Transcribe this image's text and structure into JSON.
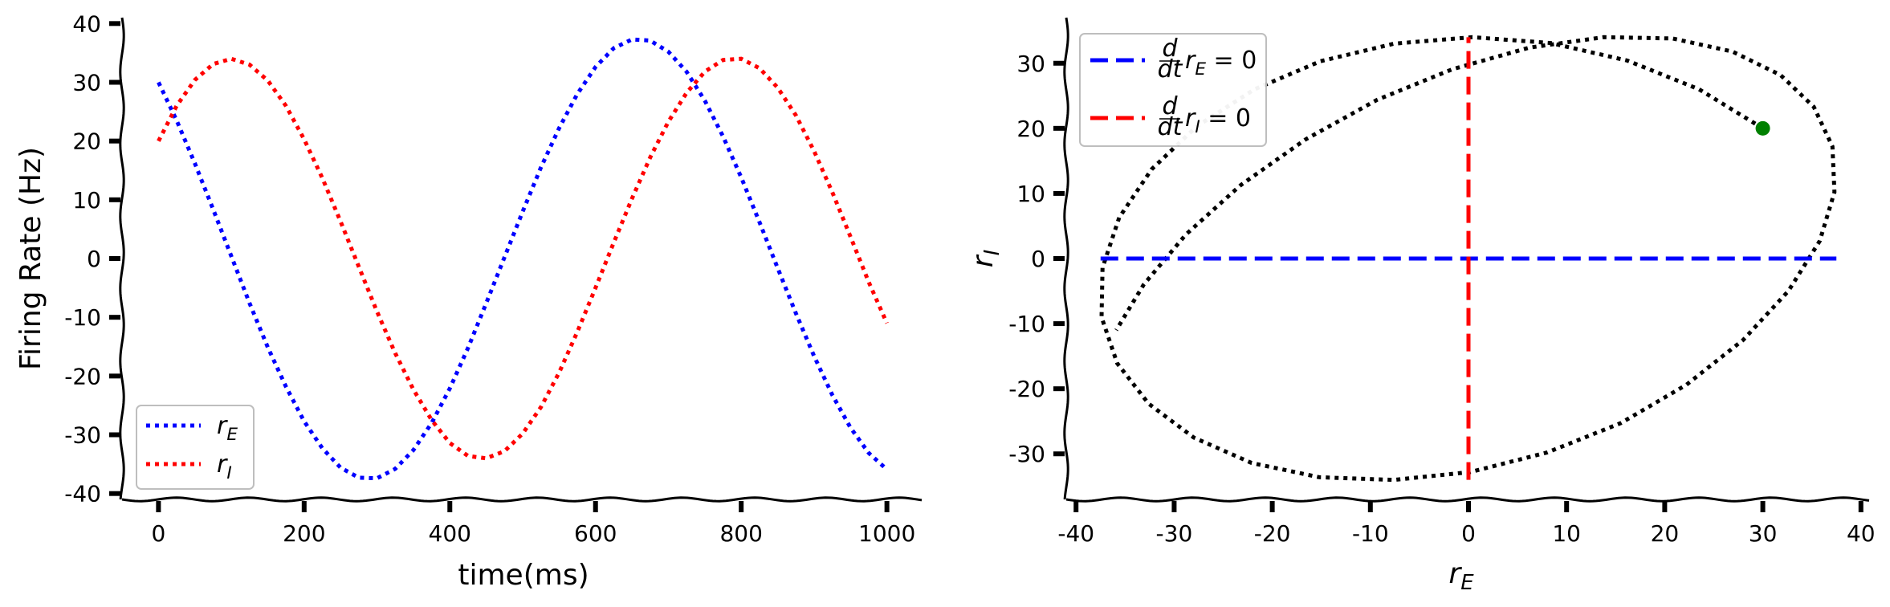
{
  "chart_data": [
    {
      "type": "line",
      "xlabel": "time(ms)",
      "ylabel": "Firing Rate (Hz)",
      "xlim": [
        -50,
        1050
      ],
      "ylim": [
        -41,
        41
      ],
      "xticks": [
        0,
        200,
        400,
        600,
        800,
        1000
      ],
      "yticks": [
        -40,
        -30,
        -20,
        -10,
        0,
        10,
        20,
        30,
        40
      ],
      "legend_position": "lower-left",
      "x": [
        0,
        25,
        50,
        75,
        100,
        125,
        150,
        175,
        200,
        225,
        250,
        275,
        300,
        325,
        350,
        375,
        400,
        425,
        450,
        475,
        500,
        525,
        550,
        575,
        600,
        625,
        650,
        675,
        700,
        725,
        750,
        775,
        800,
        825,
        850,
        875,
        900,
        925,
        950,
        975,
        1000
      ],
      "series": [
        {
          "name": "r_E",
          "label_base": "r",
          "label_sub": "E",
          "color": "#0000ff",
          "style": "dotted",
          "values": [
            30.0,
            23.5,
            16.2,
            8.4,
            0.4,
            -7.6,
            -15.1,
            -21.8,
            -27.7,
            -32.3,
            -35.6,
            -37.3,
            -37.4,
            -35.8,
            -32.6,
            -28.0,
            -22.1,
            -15.2,
            -7.6,
            0.2,
            8.0,
            15.5,
            22.2,
            28.0,
            32.6,
            35.8,
            37.3,
            37.1,
            35.2,
            31.8,
            26.9,
            20.8,
            13.8,
            6.2,
            -1.6,
            -9.3,
            -16.6,
            -23.2,
            -28.8,
            -33.1,
            -35.9
          ]
        },
        {
          "name": "r_I",
          "label_base": "r",
          "label_sub": "I",
          "color": "#ff0000",
          "style": "dotted",
          "values": [
            20.0,
            26.0,
            30.4,
            33.1,
            34.0,
            33.0,
            30.3,
            26.0,
            20.3,
            13.7,
            6.3,
            -1.4,
            -9.0,
            -16.1,
            -22.3,
            -27.5,
            -31.4,
            -33.6,
            -34.0,
            -32.8,
            -29.8,
            -25.3,
            -19.4,
            -12.5,
            -5.0,
            2.7,
            10.2,
            17.2,
            23.3,
            28.2,
            31.8,
            33.8,
            34.0,
            32.4,
            29.1,
            24.4,
            18.3,
            11.3,
            3.7,
            -4.0,
            -11.0
          ]
        }
      ]
    },
    {
      "type": "line",
      "xlabel_base": "r",
      "xlabel_sub": "E",
      "ylabel_base": "r",
      "ylabel_sub": "I",
      "xlim": [
        -41,
        41
      ],
      "ylim": [
        -37,
        37
      ],
      "xticks": [
        -40,
        -30,
        -20,
        -10,
        0,
        10,
        20,
        30,
        40
      ],
      "yticks": [
        -30,
        -20,
        -10,
        0,
        10,
        20,
        30
      ],
      "legend_position": "upper-left",
      "trajectory": {
        "color": "#000000",
        "style": "dotted",
        "x": [
          30.0,
          23.5,
          16.2,
          8.4,
          0.4,
          -7.6,
          -15.1,
          -21.8,
          -27.7,
          -32.3,
          -35.6,
          -37.3,
          -37.4,
          -35.8,
          -32.6,
          -28.0,
          -22.1,
          -15.2,
          -7.6,
          0.2,
          8.0,
          15.5,
          22.2,
          28.0,
          32.6,
          35.8,
          37.3,
          37.1,
          35.2,
          31.8,
          26.9,
          20.8,
          13.8,
          6.2,
          -1.6,
          -9.3,
          -16.6,
          -23.2,
          -28.8,
          -33.1,
          -35.9
        ],
        "y": [
          20.0,
          26.0,
          30.4,
          33.1,
          34.0,
          33.0,
          30.3,
          26.0,
          20.3,
          13.7,
          6.3,
          -1.4,
          -9.0,
          -16.1,
          -22.3,
          -27.5,
          -31.4,
          -33.6,
          -34.0,
          -32.8,
          -29.8,
          -25.3,
          -19.4,
          -12.5,
          -5.0,
          2.7,
          10.2,
          17.2,
          23.3,
          28.2,
          31.8,
          33.8,
          34.0,
          32.4,
          29.1,
          24.4,
          18.3,
          11.3,
          3.7,
          -4.0,
          -11.0
        ]
      },
      "start_point": {
        "x": 30,
        "y": 20,
        "color": "#008000"
      },
      "nullclines": [
        {
          "name": "d/dt r_E = 0",
          "label_frac_num": "d",
          "label_frac_den": "dt",
          "label_base": "r",
          "label_sub": "E",
          "label_rhs": " = 0",
          "color": "#0000ff",
          "style": "dashed",
          "x": [
            -37.5,
            37.5
          ],
          "y": [
            0,
            0
          ]
        },
        {
          "name": "d/dt r_I = 0",
          "label_frac_num": "d",
          "label_frac_den": "dt",
          "label_base": "r",
          "label_sub": "I",
          "label_rhs": " = 0",
          "color": "#ff0000",
          "style": "dashed",
          "x": [
            0,
            0
          ],
          "y": [
            -34,
            34
          ]
        }
      ]
    }
  ]
}
